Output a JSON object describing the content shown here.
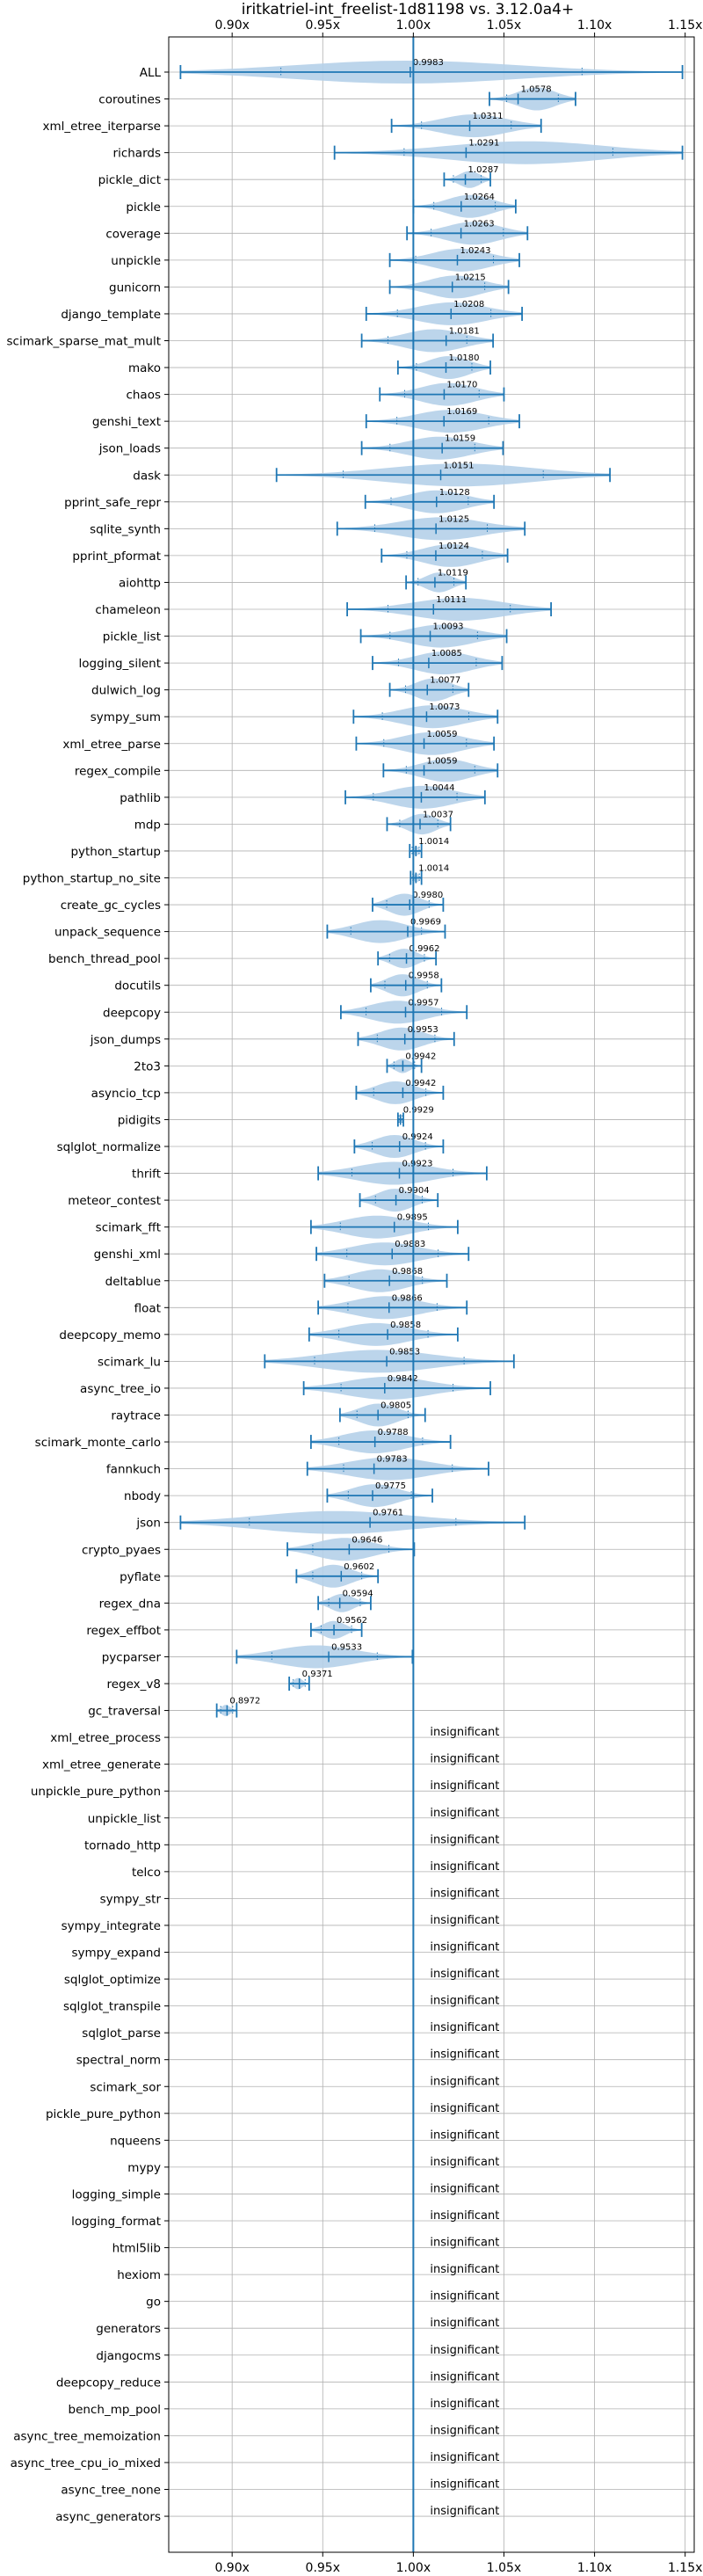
{
  "chart_data": {
    "type": "violin",
    "title": "iritkatriel-int_freelist-1d81198 vs. 3.12.0a4+",
    "xlim": [
      0.865,
      1.155
    ],
    "x_ticks": [
      0.9,
      0.95,
      1.0,
      1.05,
      1.1,
      1.15
    ],
    "x_tick_labels": [
      "0.90x",
      "0.95x",
      "1.00x",
      "1.05x",
      "1.10x",
      "1.15x"
    ],
    "reference_line": 1.0,
    "grid": true,
    "violin_color": "#b5d0e9",
    "line_color": "#1f77b4",
    "benchmarks": [
      {
        "name": "ALL",
        "value": 0.9983,
        "label": "0.9983",
        "min": 0.8715,
        "max": 1.1485
      },
      {
        "name": "coroutines",
        "value": 1.0578,
        "label": "1.0578",
        "min": 1.042,
        "max": 1.0895
      },
      {
        "name": "xml_etree_iterparse",
        "value": 1.0311,
        "label": "1.0311",
        "min": 0.988,
        "max": 1.0705
      },
      {
        "name": "richards",
        "value": 1.0291,
        "label": "1.0291",
        "min": 0.9565,
        "max": 1.1485
      },
      {
        "name": "pickle_dict",
        "value": 1.0287,
        "label": "1.0287",
        "min": 1.017,
        "max": 1.0425
      },
      {
        "name": "pickle",
        "value": 1.0264,
        "label": "1.0264",
        "min": 1.0,
        "max": 1.0565
      },
      {
        "name": "coverage",
        "value": 1.0263,
        "label": "1.0263",
        "min": 0.9965,
        "max": 1.063
      },
      {
        "name": "unpickle",
        "value": 1.0243,
        "label": "1.0243",
        "min": 0.987,
        "max": 1.0585
      },
      {
        "name": "gunicorn",
        "value": 1.0215,
        "label": "1.0215",
        "min": 0.987,
        "max": 1.0525
      },
      {
        "name": "django_template",
        "value": 1.0208,
        "label": "1.0208",
        "min": 0.974,
        "max": 1.06
      },
      {
        "name": "scimark_sparse_mat_mult",
        "value": 1.0181,
        "label": "1.0181",
        "min": 0.9715,
        "max": 1.044
      },
      {
        "name": "mako",
        "value": 1.018,
        "label": "1.0180",
        "min": 0.9915,
        "max": 1.0425
      },
      {
        "name": "chaos",
        "value": 1.017,
        "label": "1.0170",
        "min": 0.9815,
        "max": 1.05
      },
      {
        "name": "genshi_text",
        "value": 1.0169,
        "label": "1.0169",
        "min": 0.974,
        "max": 1.0585
      },
      {
        "name": "json_loads",
        "value": 1.0159,
        "label": "1.0159",
        "min": 0.9715,
        "max": 1.0495
      },
      {
        "name": "dask",
        "value": 1.0151,
        "label": "1.0151",
        "min": 0.9245,
        "max": 1.1085
      },
      {
        "name": "pprint_safe_repr",
        "value": 1.0128,
        "label": "1.0128",
        "min": 0.9735,
        "max": 1.0445
      },
      {
        "name": "sqlite_synth",
        "value": 1.0125,
        "label": "1.0125",
        "min": 0.958,
        "max": 1.0615
      },
      {
        "name": "pprint_pformat",
        "value": 1.0124,
        "label": "1.0124",
        "min": 0.9825,
        "max": 1.052
      },
      {
        "name": "aiohttp",
        "value": 1.0119,
        "label": "1.0119",
        "min": 0.996,
        "max": 1.029
      },
      {
        "name": "chameleon",
        "value": 1.0111,
        "label": "1.0111",
        "min": 0.9635,
        "max": 1.076
      },
      {
        "name": "pickle_list",
        "value": 1.0093,
        "label": "1.0093",
        "min": 0.971,
        "max": 1.0515
      },
      {
        "name": "logging_silent",
        "value": 1.0085,
        "label": "1.0085",
        "min": 0.9775,
        "max": 1.049
      },
      {
        "name": "dulwich_log",
        "value": 1.0077,
        "label": "1.0077",
        "min": 0.987,
        "max": 1.0305
      },
      {
        "name": "sympy_sum",
        "value": 1.0073,
        "label": "1.0073",
        "min": 0.967,
        "max": 1.0465
      },
      {
        "name": "xml_etree_parse",
        "value": 1.0059,
        "label": "1.0059",
        "min": 0.9685,
        "max": 1.0445
      },
      {
        "name": "regex_compile",
        "value": 1.0059,
        "label": "1.0059",
        "min": 0.9835,
        "max": 1.0465
      },
      {
        "name": "pathlib",
        "value": 1.0044,
        "label": "1.0044",
        "min": 0.9625,
        "max": 1.0395
      },
      {
        "name": "mdp",
        "value": 1.0037,
        "label": "1.0037",
        "min": 0.9855,
        "max": 1.0205
      },
      {
        "name": "python_startup",
        "value": 1.0014,
        "label": "1.0014",
        "min": 0.998,
        "max": 1.0045
      },
      {
        "name": "python_startup_no_site",
        "value": 1.0014,
        "label": "1.0014",
        "min": 0.9985,
        "max": 1.0045
      },
      {
        "name": "create_gc_cycles",
        "value": 0.998,
        "label": "0.9980",
        "min": 0.9775,
        "max": 1.0165
      },
      {
        "name": "unpack_sequence",
        "value": 0.9969,
        "label": "0.9969",
        "min": 0.9525,
        "max": 1.0175
      },
      {
        "name": "bench_thread_pool",
        "value": 0.9962,
        "label": "0.9962",
        "min": 0.9805,
        "max": 1.0125
      },
      {
        "name": "docutils",
        "value": 0.9958,
        "label": "0.9958",
        "min": 0.9765,
        "max": 1.0155
      },
      {
        "name": "deepcopy",
        "value": 0.9957,
        "label": "0.9957",
        "min": 0.96,
        "max": 1.0295
      },
      {
        "name": "json_dumps",
        "value": 0.9953,
        "label": "0.9953",
        "min": 0.9695,
        "max": 1.0225
      },
      {
        "name": "2to3",
        "value": 0.9942,
        "label": "0.9942",
        "min": 0.9855,
        "max": 1.0045
      },
      {
        "name": "asyncio_tcp",
        "value": 0.9942,
        "label": "0.9942",
        "min": 0.9685,
        "max": 1.0165
      },
      {
        "name": "pidigits",
        "value": 0.9929,
        "label": "0.9929",
        "min": 0.9915,
        "max": 0.9945
      },
      {
        "name": "sqlglot_normalize",
        "value": 0.9924,
        "label": "0.9924",
        "min": 0.9675,
        "max": 1.0165
      },
      {
        "name": "thrift",
        "value": 0.9923,
        "label": "0.9923",
        "min": 0.9475,
        "max": 1.0405
      },
      {
        "name": "meteor_contest",
        "value": 0.9904,
        "label": "0.9904",
        "min": 0.9705,
        "max": 1.0135
      },
      {
        "name": "scimark_fft",
        "value": 0.9895,
        "label": "0.9895",
        "min": 0.9435,
        "max": 1.0245
      },
      {
        "name": "genshi_xml",
        "value": 0.9883,
        "label": "0.9883",
        "min": 0.9465,
        "max": 1.0305
      },
      {
        "name": "deltablue",
        "value": 0.9868,
        "label": "0.9868",
        "min": 0.951,
        "max": 1.0185
      },
      {
        "name": "float",
        "value": 0.9866,
        "label": "0.9866",
        "min": 0.9475,
        "max": 1.0295
      },
      {
        "name": "deepcopy_memo",
        "value": 0.9858,
        "label": "0.9858",
        "min": 0.9425,
        "max": 1.0245
      },
      {
        "name": "scimark_lu",
        "value": 0.9853,
        "label": "0.9853",
        "min": 0.918,
        "max": 1.0555
      },
      {
        "name": "async_tree_io",
        "value": 0.9842,
        "label": "0.9842",
        "min": 0.9395,
        "max": 1.0425
      },
      {
        "name": "raytrace",
        "value": 0.9805,
        "label": "0.9805",
        "min": 0.9595,
        "max": 1.0065
      },
      {
        "name": "scimark_monte_carlo",
        "value": 0.9788,
        "label": "0.9788",
        "min": 0.9435,
        "max": 1.0205
      },
      {
        "name": "fannkuch",
        "value": 0.9783,
        "label": "0.9783",
        "min": 0.9415,
        "max": 1.0415
      },
      {
        "name": "nbody",
        "value": 0.9775,
        "label": "0.9775",
        "min": 0.9525,
        "max": 1.0105
      },
      {
        "name": "json",
        "value": 0.9761,
        "label": "0.9761",
        "min": 0.8715,
        "max": 1.0615
      },
      {
        "name": "crypto_pyaes",
        "value": 0.9646,
        "label": "0.9646",
        "min": 0.9305,
        "max": 1.0005
      },
      {
        "name": "pyflate",
        "value": 0.9602,
        "label": "0.9602",
        "min": 0.9355,
        "max": 0.9805
      },
      {
        "name": "regex_dna",
        "value": 0.9594,
        "label": "0.9594",
        "min": 0.9475,
        "max": 0.9765
      },
      {
        "name": "regex_effbot",
        "value": 0.9562,
        "label": "0.9562",
        "min": 0.9435,
        "max": 0.9715
      },
      {
        "name": "pycparser",
        "value": 0.9533,
        "label": "0.9533",
        "min": 0.9025,
        "max": 0.9995
      },
      {
        "name": "regex_v8",
        "value": 0.9371,
        "label": "0.9371",
        "min": 0.9315,
        "max": 0.9425
      },
      {
        "name": "gc_traversal",
        "value": 0.8972,
        "label": "0.8972",
        "min": 0.8915,
        "max": 0.9025
      },
      {
        "name": "xml_etree_process",
        "label": "insignificant"
      },
      {
        "name": "xml_etree_generate",
        "label": "insignificant"
      },
      {
        "name": "unpickle_pure_python",
        "label": "insignificant"
      },
      {
        "name": "unpickle_list",
        "label": "insignificant"
      },
      {
        "name": "tornado_http",
        "label": "insignificant"
      },
      {
        "name": "telco",
        "label": "insignificant"
      },
      {
        "name": "sympy_str",
        "label": "insignificant"
      },
      {
        "name": "sympy_integrate",
        "label": "insignificant"
      },
      {
        "name": "sympy_expand",
        "label": "insignificant"
      },
      {
        "name": "sqlglot_optimize",
        "label": "insignificant"
      },
      {
        "name": "sqlglot_transpile",
        "label": "insignificant"
      },
      {
        "name": "sqlglot_parse",
        "label": "insignificant"
      },
      {
        "name": "spectral_norm",
        "label": "insignificant"
      },
      {
        "name": "scimark_sor",
        "label": "insignificant"
      },
      {
        "name": "pickle_pure_python",
        "label": "insignificant"
      },
      {
        "name": "nqueens",
        "label": "insignificant"
      },
      {
        "name": "mypy",
        "label": "insignificant"
      },
      {
        "name": "logging_simple",
        "label": "insignificant"
      },
      {
        "name": "logging_format",
        "label": "insignificant"
      },
      {
        "name": "html5lib",
        "label": "insignificant"
      },
      {
        "name": "hexiom",
        "label": "insignificant"
      },
      {
        "name": "go",
        "label": "insignificant"
      },
      {
        "name": "generators",
        "label": "insignificant"
      },
      {
        "name": "djangocms",
        "label": "insignificant"
      },
      {
        "name": "deepcopy_reduce",
        "label": "insignificant"
      },
      {
        "name": "bench_mp_pool",
        "label": "insignificant"
      },
      {
        "name": "async_tree_memoization",
        "label": "insignificant"
      },
      {
        "name": "async_tree_cpu_io_mixed",
        "label": "insignificant"
      },
      {
        "name": "async_tree_none",
        "label": "insignificant"
      },
      {
        "name": "async_generators",
        "label": "insignificant"
      }
    ]
  }
}
